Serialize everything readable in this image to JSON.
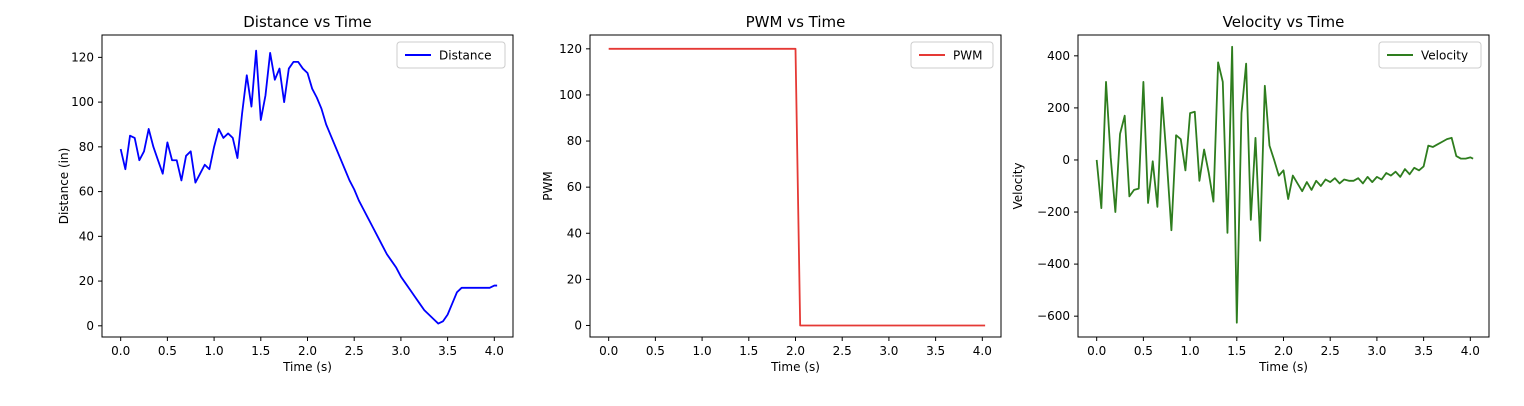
{
  "chart_data": [
    {
      "type": "line",
      "title": "Distance vs Time",
      "xlabel": "Time (s)",
      "ylabel": "Distance (in)",
      "xlim": [
        -0.2,
        4.2
      ],
      "ylim": [
        -5,
        130
      ],
      "xticks": [
        0.0,
        0.5,
        1.0,
        1.5,
        2.0,
        2.5,
        3.0,
        3.5,
        4.0
      ],
      "xtick_labels": [
        "0.0",
        "0.5",
        "1.0",
        "1.5",
        "2.0",
        "2.5",
        "3.0",
        "3.5",
        "4.0"
      ],
      "yticks": [
        0,
        20,
        40,
        60,
        80,
        100,
        120
      ],
      "ytick_labels": [
        "0",
        "20",
        "40",
        "60",
        "80",
        "100",
        "120"
      ],
      "grid": false,
      "legend_position": "top-right",
      "series": [
        {
          "name": "Distance",
          "color": "#0000ff",
          "x": [
            0.0,
            0.05,
            0.1,
            0.15,
            0.2,
            0.25,
            0.3,
            0.35,
            0.4,
            0.45,
            0.5,
            0.55,
            0.6,
            0.65,
            0.7,
            0.75,
            0.8,
            0.85,
            0.9,
            0.95,
            1.0,
            1.05,
            1.1,
            1.15,
            1.2,
            1.25,
            1.3,
            1.35,
            1.4,
            1.45,
            1.5,
            1.55,
            1.6,
            1.65,
            1.7,
            1.75,
            1.8,
            1.85,
            1.9,
            1.95,
            2.0,
            2.05,
            2.1,
            2.15,
            2.2,
            2.25,
            2.3,
            2.35,
            2.4,
            2.45,
            2.5,
            2.55,
            2.6,
            2.65,
            2.7,
            2.75,
            2.8,
            2.85,
            2.9,
            2.95,
            3.0,
            3.05,
            3.1,
            3.15,
            3.2,
            3.25,
            3.3,
            3.35,
            3.4,
            3.45,
            3.5,
            3.55,
            3.6,
            3.65,
            3.7,
            3.75,
            3.8,
            3.85,
            3.9,
            3.95,
            4.0,
            4.03
          ],
          "y": [
            79,
            70,
            85,
            84,
            74,
            78,
            88,
            80,
            74,
            68,
            82,
            74,
            74,
            65,
            76,
            78,
            64,
            68,
            72,
            70,
            80,
            88,
            84,
            86,
            84,
            75,
            95,
            112,
            98,
            123,
            92,
            103,
            122,
            110,
            115,
            100,
            115,
            118,
            118,
            115,
            113,
            106,
            102,
            97,
            90,
            85,
            80,
            75,
            70,
            65,
            61,
            56,
            52,
            48,
            44,
            40,
            36,
            32,
            29,
            26,
            22,
            19,
            16,
            13,
            10,
            7,
            5,
            3,
            1,
            2,
            5,
            10,
            15,
            17,
            17,
            17,
            17,
            17,
            17,
            17,
            18,
            18
          ]
        }
      ]
    },
    {
      "type": "line",
      "title": "PWM vs Time",
      "xlabel": "Time (s)",
      "ylabel": "PWM",
      "xlim": [
        -0.2,
        4.2
      ],
      "ylim": [
        -5,
        126
      ],
      "xticks": [
        0.0,
        0.5,
        1.0,
        1.5,
        2.0,
        2.5,
        3.0,
        3.5,
        4.0
      ],
      "xtick_labels": [
        "0.0",
        "0.5",
        "1.0",
        "1.5",
        "2.0",
        "2.5",
        "3.0",
        "3.5",
        "4.0"
      ],
      "yticks": [
        0,
        20,
        40,
        60,
        80,
        100,
        120
      ],
      "ytick_labels": [
        "0",
        "20",
        "40",
        "60",
        "80",
        "100",
        "120"
      ],
      "grid": false,
      "legend_position": "top-right",
      "series": [
        {
          "name": "PWM",
          "color": "#e53935",
          "x": [
            0.0,
            2.0,
            2.05,
            4.03
          ],
          "y": [
            120,
            120,
            0,
            0
          ]
        }
      ]
    },
    {
      "type": "line",
      "title": "Velocity vs Time",
      "xlabel": "Time (s)",
      "ylabel": "Velocity",
      "xlim": [
        -0.2,
        4.2
      ],
      "ylim": [
        -680,
        480
      ],
      "xticks": [
        0.0,
        0.5,
        1.0,
        1.5,
        2.0,
        2.5,
        3.0,
        3.5,
        4.0
      ],
      "xtick_labels": [
        "0.0",
        "0.5",
        "1.0",
        "1.5",
        "2.0",
        "2.5",
        "3.0",
        "3.5",
        "4.0"
      ],
      "yticks": [
        -600,
        -400,
        -200,
        0,
        200,
        400
      ],
      "ytick_labels": [
        "−600",
        "−400",
        "−200",
        "0",
        "200",
        "400"
      ],
      "grid": false,
      "legend_position": "top-right",
      "series": [
        {
          "name": "Velocity",
          "color": "#2e7d1e",
          "x": [
            0.0,
            0.05,
            0.1,
            0.15,
            0.2,
            0.25,
            0.3,
            0.35,
            0.4,
            0.45,
            0.5,
            0.55,
            0.6,
            0.65,
            0.7,
            0.75,
            0.8,
            0.85,
            0.9,
            0.95,
            1.0,
            1.05,
            1.1,
            1.15,
            1.2,
            1.25,
            1.3,
            1.35,
            1.4,
            1.45,
            1.5,
            1.55,
            1.6,
            1.65,
            1.7,
            1.75,
            1.8,
            1.85,
            1.9,
            1.95,
            2.0,
            2.05,
            2.1,
            2.15,
            2.2,
            2.25,
            2.3,
            2.35,
            2.4,
            2.45,
            2.5,
            2.55,
            2.6,
            2.65,
            2.7,
            2.75,
            2.8,
            2.85,
            2.9,
            2.95,
            3.0,
            3.05,
            3.1,
            3.15,
            3.2,
            3.25,
            3.3,
            3.35,
            3.4,
            3.45,
            3.5,
            3.55,
            3.6,
            3.65,
            3.7,
            3.75,
            3.8,
            3.85,
            3.9,
            3.95,
            4.0,
            4.03
          ],
          "y": [
            0,
            -185,
            300,
            10,
            -200,
            100,
            170,
            -140,
            -115,
            -110,
            300,
            -165,
            -5,
            -180,
            240,
            0,
            -270,
            95,
            80,
            -40,
            180,
            185,
            -80,
            40,
            -50,
            -160,
            375,
            300,
            -280,
            435,
            -625,
            180,
            370,
            -230,
            85,
            -310,
            285,
            55,
            0,
            -60,
            -40,
            -150,
            -60,
            -90,
            -120,
            -85,
            -115,
            -80,
            -100,
            -75,
            -85,
            -70,
            -90,
            -75,
            -80,
            -80,
            -70,
            -90,
            -65,
            -85,
            -65,
            -75,
            -50,
            -60,
            -45,
            -65,
            -35,
            -55,
            -30,
            -40,
            -25,
            55,
            50,
            60,
            70,
            80,
            85,
            15,
            5,
            5,
            10,
            5
          ]
        }
      ]
    }
  ]
}
